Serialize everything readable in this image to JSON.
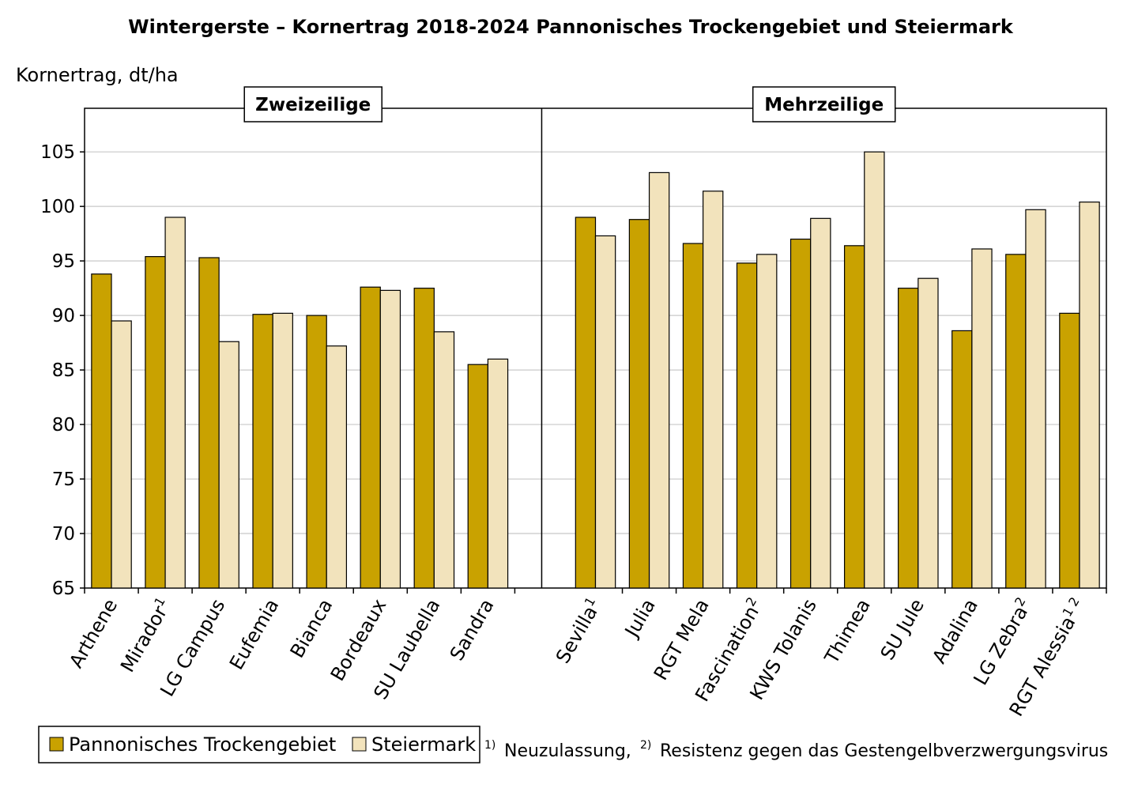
{
  "chart_data": {
    "type": "bar",
    "title": "Wintergerste – Kornertrag 2018-2024 Pannonisches Trockengebiet und Steiermark",
    "ylabel": "Kornertrag, dt/ha",
    "xlabel": "",
    "ylim": [
      65,
      109
    ],
    "yticks": [
      65,
      70,
      75,
      80,
      85,
      90,
      95,
      100,
      105
    ],
    "grid": true,
    "legend_position": "bottom-left",
    "groups": [
      {
        "label": "Zweizeilige",
        "categories": [
          {
            "name": "Arthene",
            "sup": ""
          },
          {
            "name": "Mirador",
            "sup": "1"
          },
          {
            "name": "LG Campus",
            "sup": ""
          },
          {
            "name": "Eufemia",
            "sup": ""
          },
          {
            "name": "Bianca",
            "sup": ""
          },
          {
            "name": "Bordeaux",
            "sup": ""
          },
          {
            "name": "SU Laubella",
            "sup": ""
          },
          {
            "name": "Sandra",
            "sup": ""
          }
        ],
        "values": [
          [
            93.8,
            89.5
          ],
          [
            95.4,
            99.0
          ],
          [
            95.3,
            87.6
          ],
          [
            90.1,
            90.2
          ],
          [
            90.0,
            87.2
          ],
          [
            92.6,
            92.3
          ],
          [
            92.5,
            88.5
          ],
          [
            85.5,
            86.0
          ]
        ]
      },
      {
        "label": "Mehrzeilige",
        "categories": [
          {
            "name": "Sevilla",
            "sup": "1"
          },
          {
            "name": "Julia",
            "sup": ""
          },
          {
            "name": "RGT Mela",
            "sup": ""
          },
          {
            "name": "Fascination",
            "sup": "2"
          },
          {
            "name": "KWS Tolanis",
            "sup": ""
          },
          {
            "name": "Thimea",
            "sup": ""
          },
          {
            "name": "SU Jule",
            "sup": ""
          },
          {
            "name": "Adalina",
            "sup": ""
          },
          {
            "name": "LG Zebra",
            "sup": "2"
          },
          {
            "name": "RGT Alessia",
            "sup": "1 2"
          }
        ],
        "values": [
          [
            99.0,
            97.3
          ],
          [
            98.8,
            103.1
          ],
          [
            96.6,
            101.4
          ],
          [
            94.8,
            95.6
          ],
          [
            97.0,
            98.9
          ],
          [
            96.4,
            105.0
          ],
          [
            92.5,
            93.4
          ],
          [
            88.6,
            96.1
          ],
          [
            95.6,
            99.7
          ],
          [
            90.2,
            100.4
          ]
        ]
      }
    ],
    "series": [
      {
        "name": "Pannonisches Trockengebiet",
        "color": "#c9a200"
      },
      {
        "name": "Steiermark",
        "color": "#f2e3bc"
      }
    ]
  },
  "footnote": {
    "mark1": "1)",
    "text1": "Neuzulassung,",
    "mark2": "2)",
    "text2": "Resistenz gegen das Gestengelbverzwergungsvirus"
  }
}
